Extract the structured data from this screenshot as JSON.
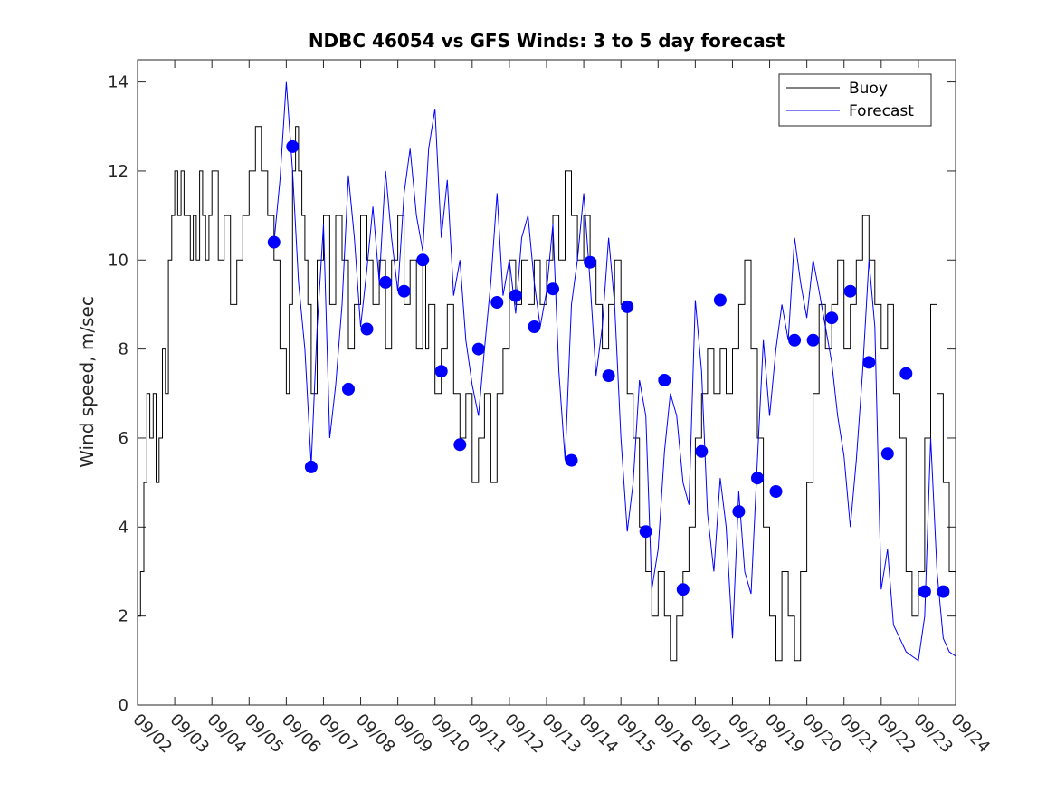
{
  "chart_data": {
    "type": "line",
    "title": "NDBC 46054 vs GFS Winds: 3 to 5 day forecast",
    "xlabel": "",
    "ylabel": "Wind speed, m/sec",
    "ylim": [
      0,
      14.5
    ],
    "yticks": [
      0,
      2,
      4,
      6,
      8,
      10,
      12,
      14
    ],
    "xlim": [
      2,
      24
    ],
    "xticks": [
      2,
      3,
      4,
      5,
      6,
      7,
      8,
      9,
      10,
      11,
      12,
      13,
      14,
      15,
      16,
      17,
      18,
      19,
      20,
      21,
      22,
      23,
      24
    ],
    "xticklabels": [
      "09/02",
      "09/03",
      "09/04",
      "09/05",
      "09/06",
      "09/07",
      "09/08",
      "09/09",
      "09/10",
      "09/11",
      "09/12",
      "09/13",
      "09/14",
      "09/15",
      "09/16",
      "09/17",
      "09/18",
      "09/19",
      "09/20",
      "09/21",
      "09/22",
      "09/23",
      "09/24"
    ],
    "legend_position": "top-right",
    "colors": {
      "buoy": "#000000",
      "forecast": "#0000ff",
      "markers": "#0000ff"
    },
    "series": [
      {
        "name": "Buoy",
        "style": "line",
        "x": [
          2.0,
          2.08,
          2.17,
          2.25,
          2.33,
          2.42,
          2.5,
          2.58,
          2.67,
          2.75,
          2.83,
          2.92,
          3.0,
          3.08,
          3.17,
          3.25,
          3.33,
          3.42,
          3.5,
          3.58,
          3.67,
          3.75,
          3.83,
          3.92,
          4.0,
          4.17,
          4.33,
          4.5,
          4.67,
          4.83,
          5.0,
          5.17,
          5.33,
          5.5,
          5.67,
          5.83,
          6.0,
          6.08,
          6.17,
          6.25,
          6.33,
          6.42,
          6.5,
          6.58,
          6.67,
          6.83,
          7.0,
          7.17,
          7.33,
          7.5,
          7.67,
          7.83,
          8.0,
          8.17,
          8.33,
          8.5,
          8.67,
          8.83,
          9.0,
          9.17,
          9.33,
          9.5,
          9.67,
          9.75,
          9.83,
          10.0,
          10.17,
          10.33,
          10.5,
          10.67,
          10.83,
          11.0,
          11.17,
          11.33,
          11.5,
          11.67,
          11.83,
          12.0,
          12.17,
          12.33,
          12.5,
          12.67,
          12.83,
          13.0,
          13.17,
          13.33,
          13.5,
          13.67,
          13.83,
          14.0,
          14.17,
          14.33,
          14.5,
          14.67,
          14.83,
          15.0,
          15.17,
          15.33,
          15.5,
          15.67,
          15.83,
          16.0,
          16.17,
          16.33,
          16.5,
          16.67,
          16.83,
          17.0,
          17.17,
          17.33,
          17.5,
          17.67,
          17.83,
          18.0,
          18.17,
          18.33,
          18.5,
          18.67,
          18.83,
          19.0,
          19.17,
          19.33,
          19.5,
          19.67,
          19.83,
          20.0,
          20.17,
          20.33,
          20.5,
          20.67,
          20.83,
          21.0,
          21.17,
          21.33,
          21.5,
          21.67,
          21.83,
          22.0,
          22.17,
          22.33,
          22.5,
          22.67,
          22.83,
          23.0,
          23.17,
          23.33,
          23.5,
          23.67,
          23.83,
          24.0
        ],
        "y": [
          2,
          3,
          5,
          7,
          6,
          7,
          5,
          6,
          8,
          7,
          10,
          11,
          12,
          11,
          12,
          11,
          11,
          10,
          11,
          10,
          12,
          11,
          10,
          11,
          12,
          10,
          11,
          9,
          10,
          11,
          12,
          13,
          12,
          11,
          10,
          8,
          7,
          9,
          12,
          13,
          12,
          11,
          10,
          9,
          7,
          10,
          11,
          9,
          11,
          10,
          8,
          9,
          11,
          10,
          9,
          10,
          8,
          10,
          11,
          9,
          10,
          8,
          10,
          8,
          9,
          7,
          8,
          9,
          7,
          6,
          7,
          5,
          6,
          7,
          5,
          7,
          8,
          10,
          9,
          10,
          9,
          10,
          9,
          10,
          11,
          10,
          12,
          11,
          10,
          11,
          10,
          9,
          8,
          9,
          10,
          9,
          7,
          6,
          4,
          3,
          2,
          3,
          2,
          1,
          2,
          3,
          4,
          6,
          7,
          8,
          7,
          8,
          7,
          8,
          9,
          10,
          8,
          6,
          4,
          2,
          1,
          3,
          2,
          1,
          3,
          5,
          7,
          9,
          8,
          9,
          10,
          8,
          9,
          10,
          11,
          10,
          9,
          8,
          9,
          7,
          6,
          3,
          2,
          3,
          6,
          9,
          7,
          5,
          3,
          2
        ]
      },
      {
        "name": "Forecast",
        "style": "line",
        "x": [
          5.67,
          5.83,
          6.0,
          6.17,
          6.33,
          6.5,
          6.67,
          6.83,
          7.0,
          7.17,
          7.33,
          7.5,
          7.67,
          7.83,
          8.0,
          8.17,
          8.33,
          8.5,
          8.67,
          8.83,
          9.0,
          9.17,
          9.33,
          9.5,
          9.67,
          9.83,
          10.0,
          10.17,
          10.33,
          10.5,
          10.67,
          10.83,
          11.0,
          11.17,
          11.33,
          11.5,
          11.67,
          11.83,
          12.0,
          12.17,
          12.33,
          12.5,
          12.67,
          12.83,
          13.0,
          13.17,
          13.33,
          13.5,
          13.67,
          13.83,
          14.0,
          14.17,
          14.33,
          14.5,
          14.67,
          14.83,
          15.0,
          15.17,
          15.33,
          15.5,
          15.67,
          15.83,
          16.0,
          16.17,
          16.33,
          16.5,
          16.67,
          16.83,
          17.0,
          17.17,
          17.33,
          17.5,
          17.67,
          17.83,
          18.0,
          18.17,
          18.33,
          18.5,
          18.67,
          18.83,
          19.0,
          19.17,
          19.33,
          19.5,
          19.67,
          19.83,
          20.0,
          20.17,
          20.33,
          20.5,
          20.67,
          20.83,
          21.0,
          21.17,
          21.33,
          21.5,
          21.67,
          21.83,
          22.0,
          22.17,
          22.33,
          22.5,
          22.67,
          22.83,
          23.0,
          23.17,
          23.33,
          23.5,
          23.67,
          23.83,
          24.0
        ],
        "y": [
          10.4,
          11.8,
          14.0,
          12.0,
          9.5,
          8.0,
          5.4,
          8.5,
          10.8,
          6.0,
          7.2,
          9.0,
          11.9,
          10.5,
          8.5,
          9.8,
          11.2,
          9.5,
          12.0,
          10.5,
          9.3,
          11.5,
          12.5,
          11.0,
          10.2,
          12.5,
          13.4,
          10.5,
          11.8,
          9.2,
          10.0,
          8.2,
          7.2,
          6.5,
          8.0,
          9.5,
          11.5,
          9.2,
          10.0,
          8.8,
          10.5,
          11.0,
          9.5,
          8.5,
          9.3,
          10.8,
          7.5,
          5.5,
          9.0,
          10.0,
          11.5,
          9.5,
          7.4,
          8.5,
          10.5,
          9.0,
          6.0,
          3.9,
          5.0,
          7.3,
          6.5,
          2.6,
          3.5,
          5.7,
          7.0,
          6.5,
          5.0,
          4.5,
          9.1,
          7.5,
          4.3,
          3.0,
          5.1,
          4.0,
          1.5,
          4.8,
          3.0,
          2.5,
          5.5,
          8.2,
          6.5,
          8.0,
          9.0,
          8.2,
          10.5,
          9.5,
          8.7,
          10.0,
          9.3,
          8.5,
          7.7,
          6.5,
          5.6,
          4.0,
          5.5,
          7.5,
          10.0,
          8.5,
          2.6,
          3.5,
          1.8,
          1.5,
          1.2,
          1.1,
          1.0,
          2.0,
          6.0,
          3.0,
          1.5,
          1.2,
          1.1
        ]
      },
      {
        "name": "Forecast points",
        "style": "marker",
        "x": [
          5.67,
          6.17,
          6.67,
          7.67,
          8.17,
          8.67,
          9.17,
          9.67,
          10.17,
          10.67,
          11.17,
          11.67,
          12.17,
          12.67,
          13.17,
          13.67,
          14.17,
          14.67,
          15.17,
          15.67,
          16.17,
          16.67,
          17.17,
          17.67,
          18.17,
          18.67,
          19.17,
          19.67,
          20.17,
          20.67,
          21.17,
          21.67,
          22.17,
          22.67,
          23.17,
          23.67
        ],
        "y": [
          10.4,
          12.55,
          5.35,
          7.1,
          8.45,
          9.5,
          9.3,
          10.0,
          7.5,
          5.85,
          8.0,
          9.05,
          9.2,
          8.5,
          9.35,
          5.5,
          9.95,
          7.4,
          8.95,
          3.9,
          7.3,
          2.6,
          5.7,
          9.1,
          4.35,
          5.1,
          4.8,
          8.2,
          8.2,
          8.7,
          9.3,
          7.7,
          5.65,
          7.45,
          2.55,
          2.55
        ]
      }
    ]
  }
}
